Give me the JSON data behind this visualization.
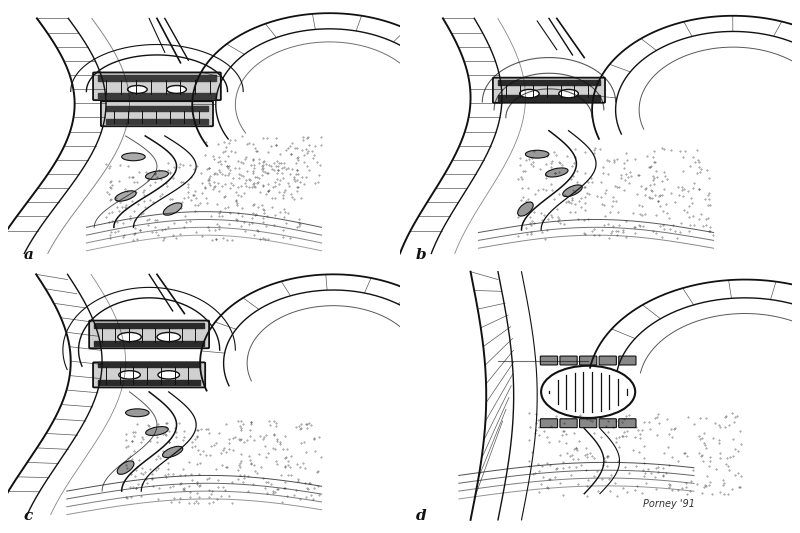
{
  "background_color": "#ffffff",
  "fig_width": 8.0,
  "fig_height": 5.33,
  "dpi": 100,
  "labels": [
    "a",
    "b",
    "c",
    "d"
  ],
  "label_fontsize": 11,
  "label_fontweight": "bold",
  "signature": "Porney '91",
  "signature_fontsize": 7,
  "line_color": "#111111",
  "light_gray": "#cccccc",
  "mid_gray": "#888888",
  "dark_gray": "#444444"
}
